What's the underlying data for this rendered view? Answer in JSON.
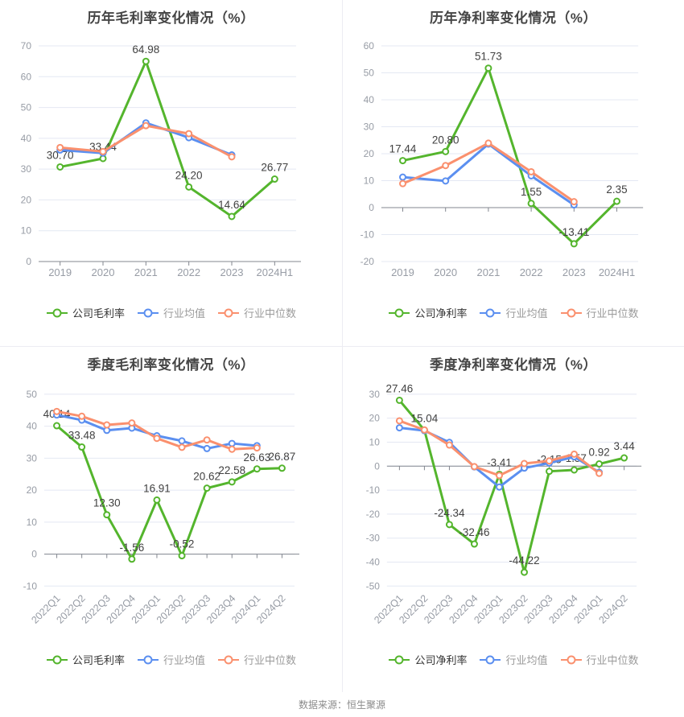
{
  "page": {
    "source_text": "数据来源：恒生聚源"
  },
  "theme": {
    "company_green": "#54B52D",
    "industry_avg_blue": "#5B8FF0",
    "industry_median_orange": "#FA906E",
    "grid_line": "#E4E8F3",
    "axis_line": "#83878F",
    "tick_label": "#979CA5",
    "data_label": "#414141",
    "title_color": "#454545",
    "legend_primary_text": "#333333",
    "legend_secondary_text": "#9B9B9B"
  },
  "chart_data": [
    {
      "type": "line",
      "title": "历年毛利率变化情况（%）",
      "categories": [
        "2019",
        "2020",
        "2021",
        "2022",
        "2023",
        "2024H1"
      ],
      "ylim": [
        0,
        70
      ],
      "ytick_step": 10,
      "x_label_rotate": 0,
      "grid": "horizontal-only",
      "legend_position": "bottom",
      "legend": [
        "公司毛利率",
        "行业均值",
        "行业中位数"
      ],
      "series": [
        {
          "name": "公司毛利率",
          "color": "#54B52D",
          "data_labels": true,
          "values": [
            30.7,
            33.44,
            64.98,
            24.2,
            14.64,
            26.77
          ]
        },
        {
          "name": "行业均值",
          "color": "#5B8FF0",
          "data_labels": false,
          "values": [
            36.2,
            35.2,
            45.0,
            40.2,
            34.6,
            null
          ]
        },
        {
          "name": "行业中位数",
          "color": "#FA906E",
          "data_labels": false,
          "values": [
            37.0,
            35.7,
            44.1,
            41.5,
            34.0,
            null
          ]
        }
      ]
    },
    {
      "type": "line",
      "title": "历年净利率变化情况（%）",
      "categories": [
        "2019",
        "2020",
        "2021",
        "2022",
        "2023",
        "2024H1"
      ],
      "ylim": [
        -20,
        60
      ],
      "ytick_step": 10,
      "x_label_rotate": 0,
      "grid": "horizontal-only",
      "legend_position": "bottom",
      "legend": [
        "公司净利率",
        "行业均值",
        "行业中位数"
      ],
      "series": [
        {
          "name": "公司净利率",
          "color": "#54B52D",
          "data_labels": true,
          "values": [
            17.44,
            20.8,
            51.73,
            1.55,
            -13.41,
            2.35
          ]
        },
        {
          "name": "行业均值",
          "color": "#5B8FF0",
          "data_labels": false,
          "values": [
            11.3,
            9.9,
            23.6,
            11.8,
            1.0,
            null
          ]
        },
        {
          "name": "行业中位数",
          "color": "#FA906E",
          "data_labels": false,
          "values": [
            8.9,
            15.6,
            23.9,
            13.3,
            2.2,
            null
          ]
        }
      ]
    },
    {
      "type": "line",
      "title": "季度毛利率变化情况（%）",
      "categories": [
        "2022Q1",
        "2022Q2",
        "2022Q3",
        "2022Q4",
        "2023Q1",
        "2023Q2",
        "2023Q3",
        "2023Q4",
        "2024Q1",
        "2024Q2"
      ],
      "ylim": [
        -10,
        50
      ],
      "ytick_step": 10,
      "x_label_rotate": 45,
      "grid": "horizontal-only",
      "legend_position": "bottom",
      "legend": [
        "公司毛利率",
        "行业均值",
        "行业中位数"
      ],
      "series": [
        {
          "name": "公司毛利率",
          "color": "#54B52D",
          "data_labels": true,
          "values": [
            40.14,
            33.48,
            12.3,
            -1.56,
            16.91,
            -0.52,
            20.62,
            22.58,
            26.63,
            26.87
          ]
        },
        {
          "name": "行业均值",
          "color": "#5B8FF0",
          "data_labels": false,
          "values": [
            43.5,
            41.9,
            38.7,
            39.4,
            37.0,
            35.4,
            33.0,
            34.6,
            33.9,
            null
          ]
        },
        {
          "name": "行业中位数",
          "color": "#FA906E",
          "data_labels": false,
          "values": [
            44.6,
            43.1,
            40.4,
            41.0,
            36.2,
            33.4,
            35.7,
            32.8,
            33.2,
            null
          ]
        }
      ]
    },
    {
      "type": "line",
      "title": "季度净利率变化情况（%）",
      "categories": [
        "2022Q1",
        "2022Q2",
        "2022Q3",
        "2022Q4",
        "2023Q1",
        "2023Q2",
        "2023Q3",
        "2023Q4",
        "2024Q1",
        "2024Q2"
      ],
      "ylim": [
        -50,
        30
      ],
      "ytick_step": 10,
      "x_label_rotate": 45,
      "grid": "horizontal-only",
      "legend_position": "bottom",
      "legend": [
        "公司净利率",
        "行业均值",
        "行业中位数"
      ],
      "series": [
        {
          "name": "公司净利率",
          "color": "#54B52D",
          "data_labels": true,
          "values": [
            27.46,
            15.04,
            -24.34,
            -32.46,
            -3.41,
            -44.22,
            -2.15,
            -1.57,
            0.92,
            3.44
          ]
        },
        {
          "name": "行业均值",
          "color": "#5B8FF0",
          "data_labels": false,
          "values": [
            16.0,
            14.8,
            9.9,
            -0.3,
            -8.7,
            -0.8,
            1.3,
            3.9,
            -2.6,
            null
          ]
        },
        {
          "name": "行业中位数",
          "color": "#FA906E",
          "data_labels": false,
          "values": [
            18.9,
            15.1,
            8.8,
            -0.2,
            -3.9,
            1.1,
            2.2,
            5.0,
            -3.0,
            null
          ]
        }
      ]
    }
  ]
}
